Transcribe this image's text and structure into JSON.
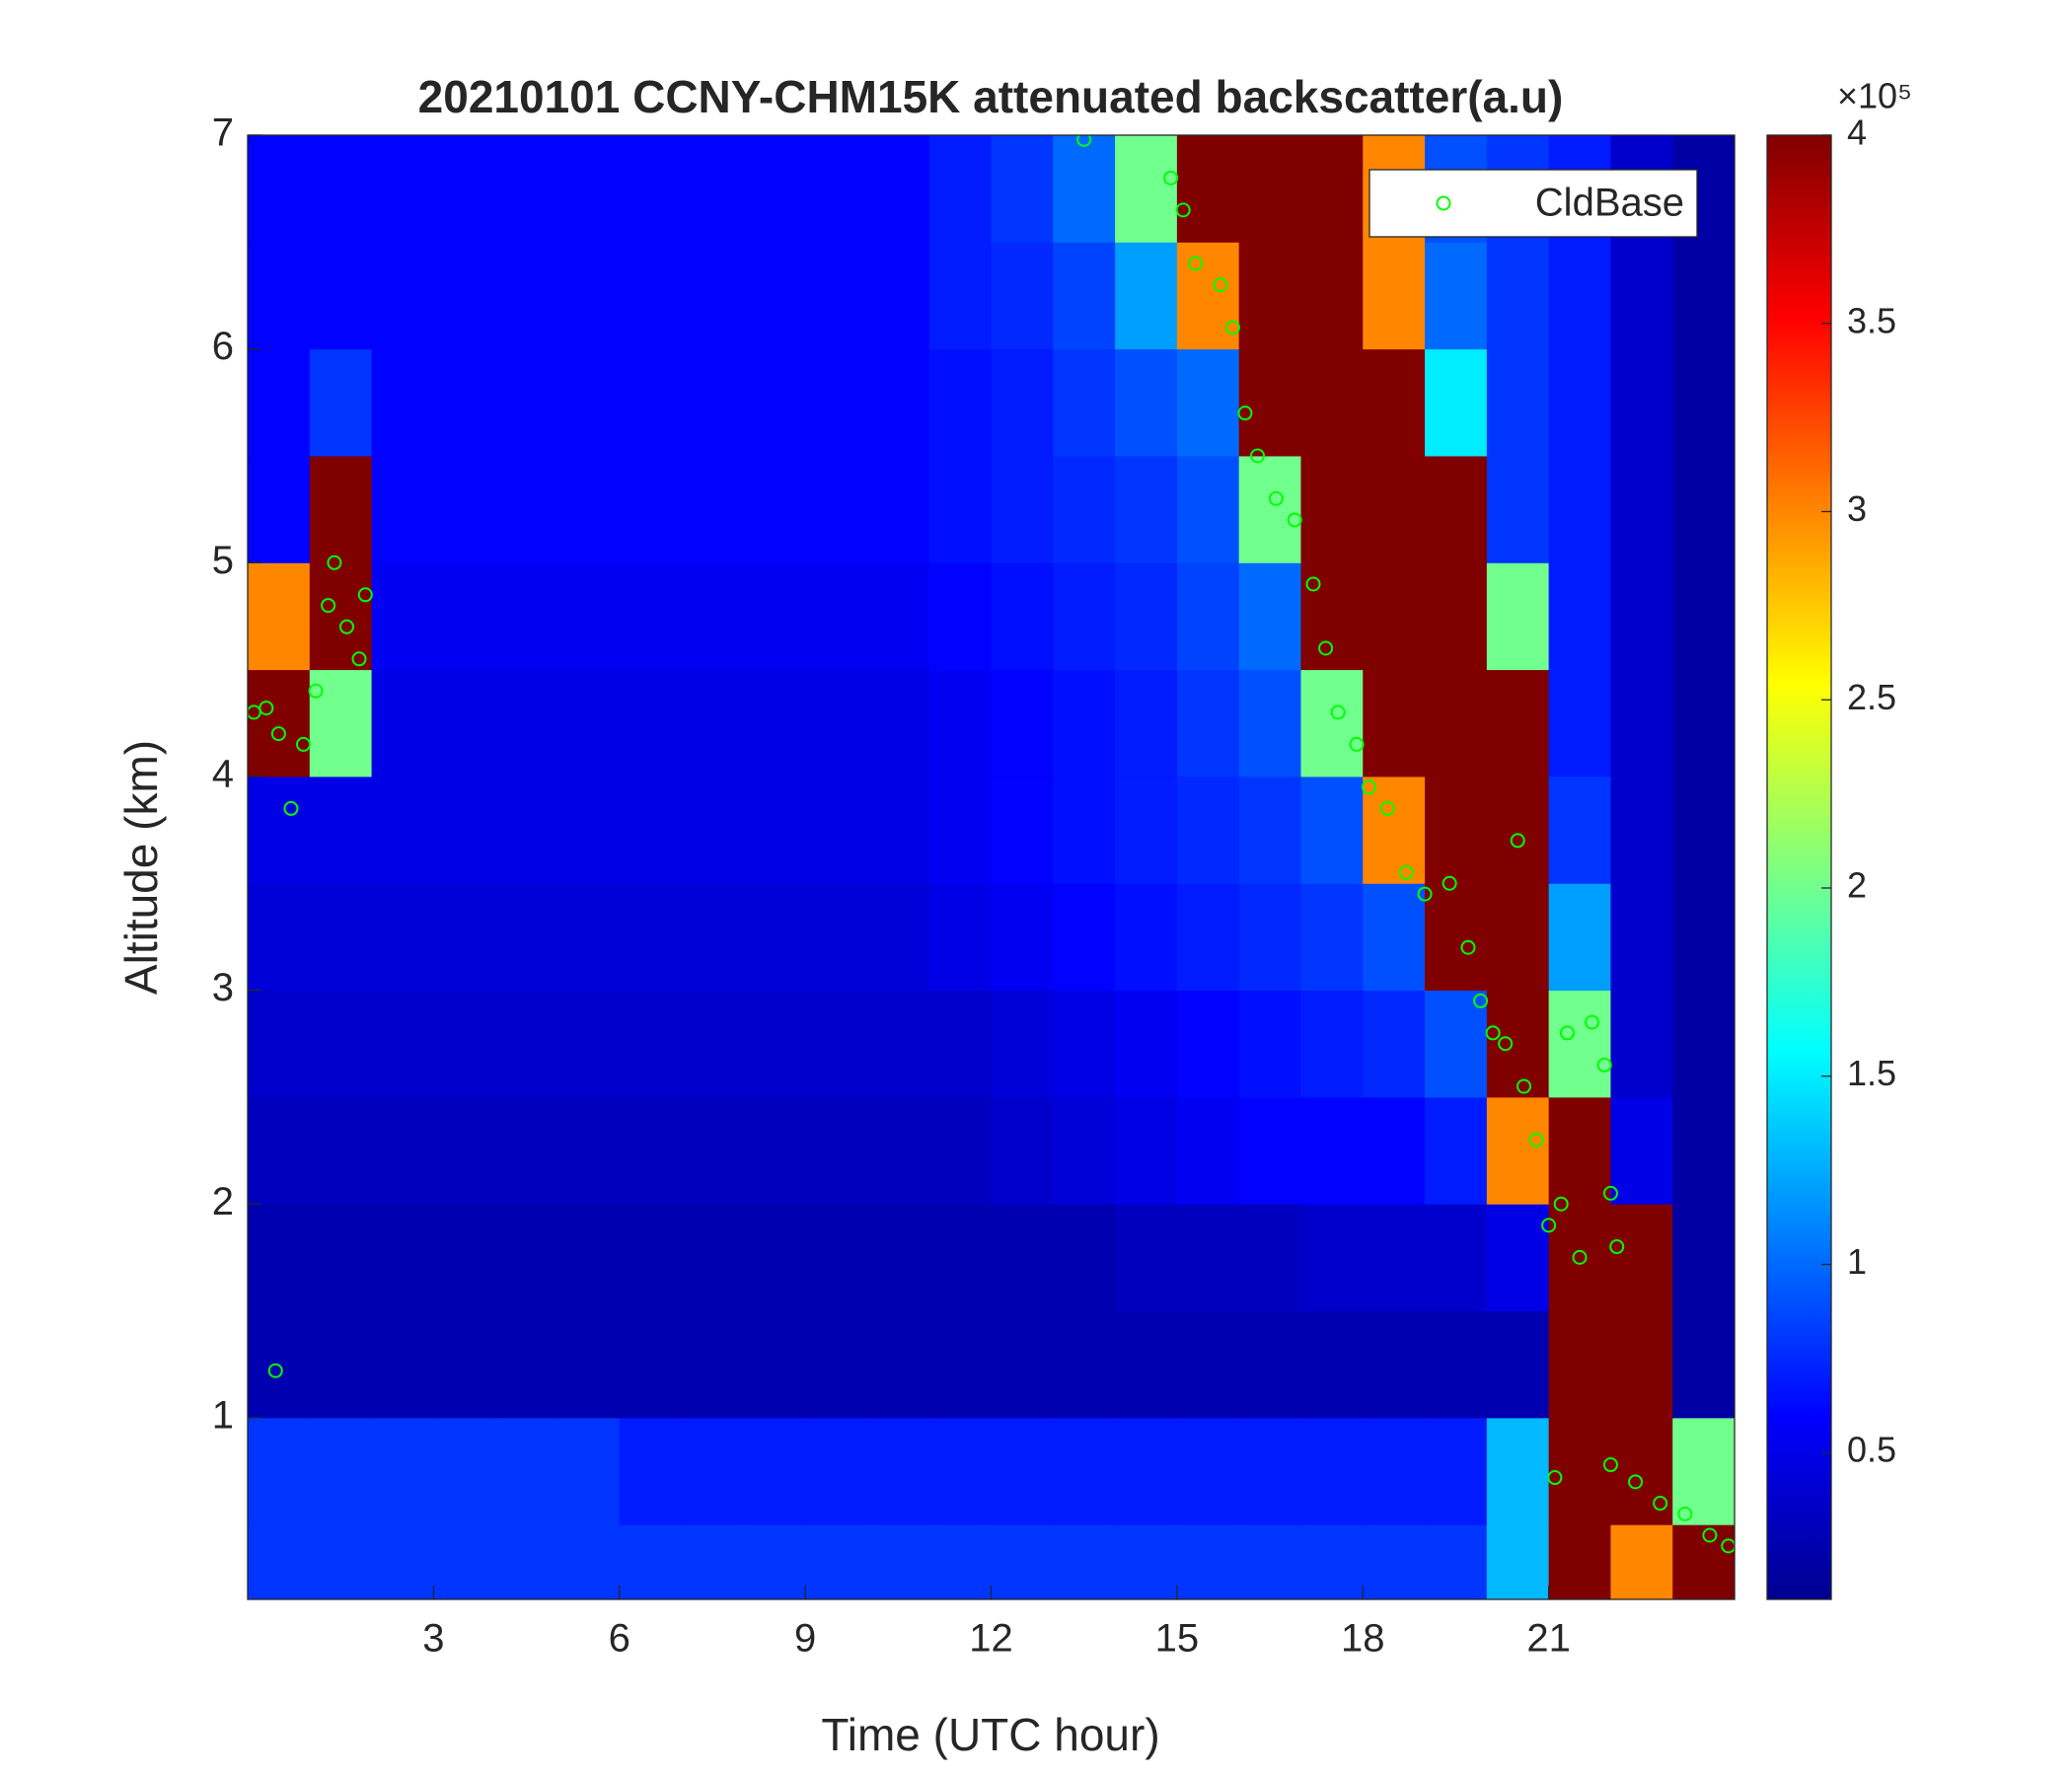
{
  "chart_data": {
    "type": "heatmap",
    "title": "20210101 CCNY-CHM15K attenuated backscatter(a.u)",
    "x_label": "Time (UTC hour)",
    "y_label": "Altitude (km)",
    "xlim": [
      0,
      24
    ],
    "ylim": [
      0.15,
      7
    ],
    "xticks": [
      3,
      6,
      9,
      12,
      15,
      18,
      21
    ],
    "yticks": [
      1,
      2,
      3,
      4,
      5,
      6,
      7
    ],
    "x_edges": [
      0,
      1,
      2,
      3,
      4,
      5,
      6,
      7,
      8,
      9,
      10,
      11,
      12,
      13,
      14,
      15,
      16,
      17,
      18,
      19,
      20,
      21,
      22,
      23,
      24
    ],
    "y_edges": [
      0.15,
      0.5,
      1,
      1.5,
      2,
      2.5,
      3,
      3.5,
      4,
      4.5,
      5,
      5.5,
      6,
      6.5,
      7
    ],
    "colormap": "jet",
    "clim": [
      0.11,
      4
    ],
    "colorbar_ticks": [
      0.5,
      1,
      1.5,
      2,
      2.5,
      3,
      3.5,
      4
    ],
    "colorbar_exponent_label": "×10⁵",
    "z": [
      [
        0.8,
        0.8,
        0.8,
        0.8,
        0.8,
        0.8,
        0.8,
        0.8,
        0.8,
        0.8,
        0.8,
        0.8,
        0.8,
        0.8,
        0.8,
        0.8,
        0.8,
        0.8,
        0.8,
        0.8,
        1.3,
        4,
        3,
        4
      ],
      [
        0.8,
        0.8,
        0.8,
        0.8,
        0.8,
        0.8,
        0.7,
        0.7,
        0.7,
        0.7,
        0.7,
        0.7,
        0.7,
        0.7,
        0.7,
        0.7,
        0.7,
        0.7,
        0.7,
        0.7,
        1.3,
        4,
        4,
        2
      ],
      [
        0.3,
        0.3,
        0.3,
        0.3,
        0.3,
        0.3,
        0.3,
        0.3,
        0.3,
        0.3,
        0.3,
        0.3,
        0.3,
        0.3,
        0.3,
        0.3,
        0.3,
        0.3,
        0.3,
        0.3,
        0.3,
        4,
        4,
        0.25
      ],
      [
        0.3,
        0.3,
        0.3,
        0.3,
        0.3,
        0.3,
        0.3,
        0.3,
        0.3,
        0.3,
        0.3,
        0.3,
        0.3,
        0.3,
        0.35,
        0.35,
        0.35,
        0.4,
        0.4,
        0.4,
        0.5,
        4,
        4,
        0.25
      ],
      [
        0.35,
        0.35,
        0.35,
        0.35,
        0.35,
        0.35,
        0.35,
        0.35,
        0.35,
        0.35,
        0.35,
        0.35,
        0.4,
        0.45,
        0.5,
        0.55,
        0.6,
        0.6,
        0.6,
        0.7,
        3,
        4,
        0.5,
        0.25
      ],
      [
        0.4,
        0.4,
        0.4,
        0.4,
        0.4,
        0.4,
        0.4,
        0.4,
        0.4,
        0.4,
        0.4,
        0.4,
        0.45,
        0.5,
        0.55,
        0.6,
        0.65,
        0.7,
        0.75,
        0.9,
        4,
        2,
        0.4,
        0.25
      ],
      [
        0.45,
        0.45,
        0.45,
        0.45,
        0.45,
        0.45,
        0.45,
        0.45,
        0.45,
        0.45,
        0.45,
        0.5,
        0.55,
        0.6,
        0.65,
        0.7,
        0.75,
        0.8,
        0.9,
        4,
        4,
        1.2,
        0.4,
        0.25
      ],
      [
        0.5,
        0.5,
        0.5,
        0.5,
        0.5,
        0.5,
        0.5,
        0.5,
        0.5,
        0.5,
        0.5,
        0.55,
        0.6,
        0.65,
        0.7,
        0.75,
        0.8,
        0.9,
        3,
        4,
        4,
        0.8,
        0.4,
        0.25
      ],
      [
        4,
        2,
        0.5,
        0.5,
        0.5,
        0.5,
        0.5,
        0.5,
        0.5,
        0.5,
        0.5,
        0.55,
        0.6,
        0.65,
        0.7,
        0.8,
        0.9,
        2,
        4,
        4,
        4,
        0.7,
        0.4,
        0.25
      ],
      [
        3,
        4,
        0.55,
        0.55,
        0.55,
        0.55,
        0.55,
        0.55,
        0.55,
        0.55,
        0.55,
        0.6,
        0.65,
        0.7,
        0.75,
        0.85,
        1,
        4,
        4,
        4,
        2,
        0.7,
        0.4,
        0.25
      ],
      [
        0.6,
        4,
        0.6,
        0.6,
        0.6,
        0.6,
        0.6,
        0.6,
        0.6,
        0.6,
        0.6,
        0.65,
        0.7,
        0.75,
        0.8,
        0.9,
        2,
        4,
        4,
        4,
        0.8,
        0.7,
        0.4,
        0.25
      ],
      [
        0.6,
        0.8,
        0.6,
        0.6,
        0.6,
        0.6,
        0.6,
        0.6,
        0.6,
        0.6,
        0.6,
        0.65,
        0.7,
        0.8,
        0.9,
        1,
        4,
        4,
        4,
        1.5,
        0.8,
        0.7,
        0.4,
        0.25
      ],
      [
        0.6,
        0.6,
        0.6,
        0.6,
        0.6,
        0.6,
        0.6,
        0.6,
        0.6,
        0.6,
        0.6,
        0.7,
        0.75,
        0.85,
        1.2,
        3,
        4,
        4,
        3,
        1,
        0.8,
        0.7,
        0.4,
        0.25
      ],
      [
        0.6,
        0.6,
        0.6,
        0.6,
        0.6,
        0.6,
        0.6,
        0.6,
        0.6,
        0.6,
        0.6,
        0.7,
        0.8,
        1,
        2,
        4,
        4,
        4,
        3,
        0.9,
        0.8,
        0.7,
        0.4,
        0.25
      ]
    ],
    "legend_loc": "northeast",
    "series": [
      {
        "name": "CldBase",
        "type": "scatter",
        "color": "#00ff00",
        "x": [
          0.1,
          0.3,
          0.5,
          0.7,
          0.9,
          1.1,
          1.3,
          1.4,
          1.6,
          1.8,
          1.9,
          0.45,
          13.5,
          14.9,
          15.1,
          15.3,
          15.7,
          15.9,
          16.1,
          16.3,
          16.6,
          16.9,
          17.2,
          17.4,
          17.6,
          17.9,
          18.1,
          18.4,
          18.7,
          19.0,
          19.4,
          19.7,
          19.9,
          20.1,
          20.3,
          20.6,
          20.8,
          21.0,
          21.2,
          21.3,
          21.5,
          21.7,
          21.9,
          22.0,
          22.1,
          22.0,
          22.4,
          22.8,
          23.2,
          23.6,
          23.9,
          20.5,
          21.1
        ],
        "values": [
          4.3,
          4.32,
          4.2,
          3.85,
          4.15,
          4.4,
          4.8,
          5.0,
          4.7,
          4.55,
          4.85,
          1.22,
          6.98,
          6.8,
          6.65,
          6.4,
          6.3,
          6.1,
          5.7,
          5.5,
          5.3,
          5.2,
          4.9,
          4.6,
          4.3,
          4.15,
          3.95,
          3.85,
          3.55,
          3.45,
          3.5,
          3.2,
          2.95,
          2.8,
          2.75,
          2.55,
          2.3,
          1.9,
          2.0,
          2.8,
          1.75,
          2.85,
          2.65,
          2.05,
          1.8,
          0.78,
          0.7,
          0.6,
          0.55,
          0.45,
          0.4,
          3.7,
          0.72
        ]
      }
    ]
  }
}
